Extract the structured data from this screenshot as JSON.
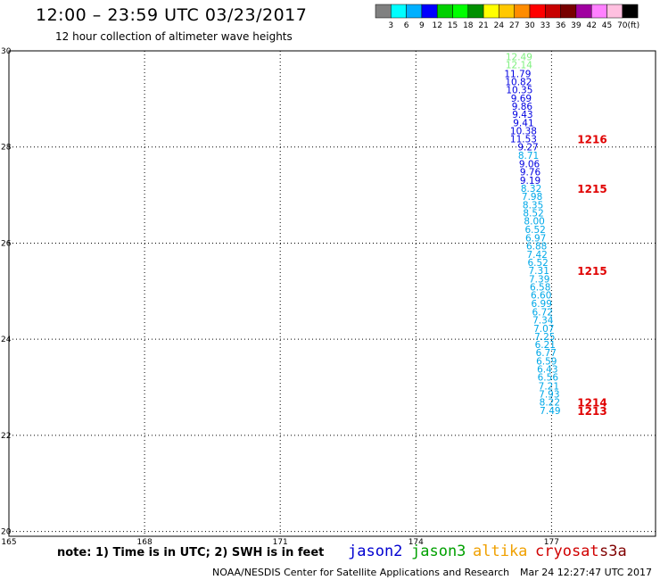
{
  "header": {
    "title": "12:00 – 23:59 UTC 03/23/2017",
    "subtitle": "12 hour collection of altimeter wave heights"
  },
  "colorbar": {
    "labels": [
      "3",
      "6",
      "9",
      "12",
      "15",
      "18",
      "21",
      "24",
      "27",
      "30",
      "33",
      "36",
      "39",
      "42",
      "45",
      "70"
    ],
    "unit": "(ft)",
    "colors": [
      "#808080",
      "#00ffff",
      "#00b0ff",
      "#0000ff",
      "#00d000",
      "#00ff00",
      "#009000",
      "#ffff00",
      "#ffc800",
      "#ff8c00",
      "#ff0000",
      "#c80000",
      "#780000",
      "#a000a0",
      "#ff80ff",
      "#ffc0e0",
      "#000000"
    ]
  },
  "chart_data": {
    "type": "scatter",
    "title": "12:00 – 23:59 UTC 03/23/2017",
    "subtitle": "12 hour collection of altimeter wave heights",
    "x_ticks": [
      "165",
      "168",
      "171",
      "174",
      "177"
    ],
    "y_ticks": [
      "30",
      "28",
      "26",
      "24",
      "22",
      "20"
    ],
    "xlim": [
      165,
      179.3
    ],
    "ylim": [
      19.9,
      30
    ],
    "grid": true,
    "points": [
      {
        "lon": 176.28,
        "lat": 29.88,
        "value": "12.49",
        "color": "#7ef07e"
      },
      {
        "lon": 176.28,
        "lat": 29.71,
        "value": "12.14",
        "color": "#7ef07e"
      },
      {
        "lon": 176.25,
        "lat": 29.53,
        "value": "11.79",
        "color": "#0000e0"
      },
      {
        "lon": 176.27,
        "lat": 29.36,
        "value": "10.82",
        "color": "#0000e0"
      },
      {
        "lon": 176.29,
        "lat": 29.19,
        "value": "10.35",
        "color": "#0000e0"
      },
      {
        "lon": 176.33,
        "lat": 29.02,
        "value": "9.69",
        "color": "#0000e0"
      },
      {
        "lon": 176.35,
        "lat": 28.85,
        "value": "9.86",
        "color": "#0000e0"
      },
      {
        "lon": 176.36,
        "lat": 28.68,
        "value": "9.43",
        "color": "#0000e0"
      },
      {
        "lon": 176.38,
        "lat": 28.51,
        "value": "9.41",
        "color": "#0000e0"
      },
      {
        "lon": 176.38,
        "lat": 28.34,
        "value": "10.38",
        "color": "#0000e0"
      },
      {
        "lon": 176.38,
        "lat": 28.17,
        "value": "11.53",
        "color": "#0000e0"
      },
      {
        "lon": 176.48,
        "lat": 28.0,
        "value": "9.27",
        "color": "#0000e0"
      },
      {
        "lon": 176.49,
        "lat": 27.83,
        "value": "8.71",
        "color": "#00a8e8"
      },
      {
        "lon": 176.51,
        "lat": 27.65,
        "value": "9.06",
        "color": "#0000e0"
      },
      {
        "lon": 176.53,
        "lat": 27.48,
        "value": "9.76",
        "color": "#0000e0"
      },
      {
        "lon": 176.53,
        "lat": 27.31,
        "value": "9.19",
        "color": "#0000e0"
      },
      {
        "lon": 176.55,
        "lat": 27.14,
        "value": "8.32",
        "color": "#00a8e8"
      },
      {
        "lon": 176.57,
        "lat": 26.97,
        "value": "7.98",
        "color": "#00a8e8"
      },
      {
        "lon": 176.59,
        "lat": 26.8,
        "value": "8.35",
        "color": "#00a8e8"
      },
      {
        "lon": 176.6,
        "lat": 26.63,
        "value": "8.52",
        "color": "#00a8e8"
      },
      {
        "lon": 176.62,
        "lat": 26.46,
        "value": "8.00",
        "color": "#00a8e8"
      },
      {
        "lon": 176.64,
        "lat": 26.29,
        "value": "6.52",
        "color": "#00a8e8"
      },
      {
        "lon": 176.65,
        "lat": 26.11,
        "value": "6.97",
        "color": "#00a8e8"
      },
      {
        "lon": 176.67,
        "lat": 25.94,
        "value": "6.88",
        "color": "#00a8e8"
      },
      {
        "lon": 176.68,
        "lat": 25.77,
        "value": "7.42",
        "color": "#00a8e8"
      },
      {
        "lon": 176.7,
        "lat": 25.6,
        "value": "6.52",
        "color": "#00a8e8"
      },
      {
        "lon": 176.72,
        "lat": 25.43,
        "value": "7.31",
        "color": "#00a8e8"
      },
      {
        "lon": 176.73,
        "lat": 25.26,
        "value": "7.39",
        "color": "#00a8e8"
      },
      {
        "lon": 176.75,
        "lat": 25.09,
        "value": "6.58",
        "color": "#00a8e8"
      },
      {
        "lon": 176.77,
        "lat": 24.92,
        "value": "6.60",
        "color": "#00a8e8"
      },
      {
        "lon": 176.78,
        "lat": 24.75,
        "value": "6.99",
        "color": "#00a8e8"
      },
      {
        "lon": 176.8,
        "lat": 24.57,
        "value": "6.72",
        "color": "#00a8e8"
      },
      {
        "lon": 176.81,
        "lat": 24.4,
        "value": "7.34",
        "color": "#00a8e8"
      },
      {
        "lon": 176.83,
        "lat": 24.23,
        "value": "7.07",
        "color": "#00a8e8"
      },
      {
        "lon": 176.85,
        "lat": 24.06,
        "value": "7.25",
        "color": "#00a8e8"
      },
      {
        "lon": 176.86,
        "lat": 23.89,
        "value": "6.21",
        "color": "#00a8e8"
      },
      {
        "lon": 176.88,
        "lat": 23.72,
        "value": "6.77",
        "color": "#00a8e8"
      },
      {
        "lon": 176.89,
        "lat": 23.55,
        "value": "6.59",
        "color": "#00a8e8"
      },
      {
        "lon": 176.91,
        "lat": 23.38,
        "value": "6.43",
        "color": "#00a8e8"
      },
      {
        "lon": 176.92,
        "lat": 23.21,
        "value": "6.56",
        "color": "#00a8e8"
      },
      {
        "lon": 176.94,
        "lat": 23.03,
        "value": "7.21",
        "color": "#00a8e8"
      },
      {
        "lon": 176.95,
        "lat": 22.86,
        "value": "7.93",
        "color": "#00a8e8"
      },
      {
        "lon": 176.96,
        "lat": 22.69,
        "value": "8.22",
        "color": "#00a8e8"
      },
      {
        "lon": 176.97,
        "lat": 22.52,
        "value": "7.49",
        "color": "#00a8e8"
      }
    ],
    "time_labels": [
      {
        "text": "1216",
        "lon": 177.57,
        "lat": 28.17
      },
      {
        "text": "1215",
        "lon": 177.57,
        "lat": 27.14
      },
      {
        "text": "1215",
        "lon": 177.57,
        "lat": 25.43
      },
      {
        "text": "1214",
        "lon": 177.57,
        "lat": 22.69
      },
      {
        "text": "1213",
        "lon": 177.57,
        "lat": 22.52
      }
    ]
  },
  "footer": {
    "note": "note: 1) Time is in UTC; 2) SWH is in feet",
    "satellites": [
      {
        "name": "jason2",
        "color": "#0000d0"
      },
      {
        "name": "jason3",
        "color": "#00a000"
      },
      {
        "name": "altika",
        "color": "#f0a000"
      },
      {
        "name": "cryosat",
        "color": "#d00000"
      },
      {
        "name": "s3a",
        "color": "#800000"
      }
    ],
    "credit": "NOAA/NESDIS Center for Satellite Applications and Research",
    "timestamp": "Mar 24 12:27:47 UTC 2017"
  }
}
